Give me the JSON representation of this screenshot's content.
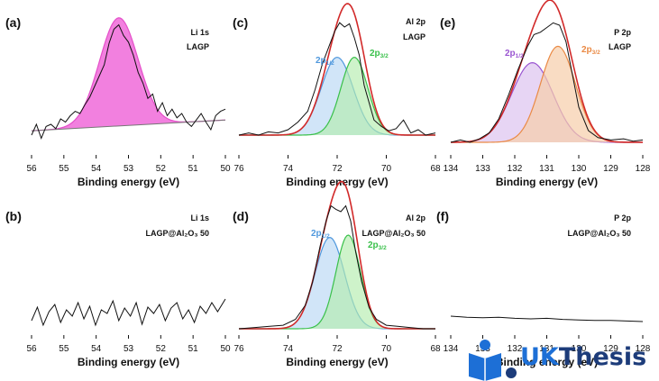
{
  "colors": {
    "li_fill": "#f06ad9",
    "li_line": "#e44fc9",
    "al_fill_1": "#b9d7f5",
    "al_line_1": "#4f98dd",
    "al_fill_2": "#b4ecae",
    "al_line_2": "#39c04a",
    "p_fill_1": "#ddc3f0",
    "p_line_1": "#9a55d1",
    "p_fill_2": "#f6cda9",
    "p_line_2": "#ea8a45",
    "fit": "#d22a2a",
    "baseline": "#777777",
    "wm_blue": "#1d6fd6",
    "wm_dark": "#1d3c7a"
  },
  "watermark": {
    "text_a": "UK",
    "text_b": "Thesis",
    "icon": "book-reader-icon"
  },
  "chart_data": [
    {
      "panel": "(a)",
      "type": "line",
      "annotation": [
        "Li 1s",
        "LAGP"
      ],
      "xlabel": "Binding energy (eV)",
      "xlim": [
        56,
        50
      ],
      "xticks": [
        56,
        55,
        54,
        53,
        52,
        51,
        50
      ],
      "baseline": [
        [
          56,
          0.04
        ],
        [
          50,
          0.14
        ]
      ],
      "components": [
        {
          "label": "",
          "center": 53.3,
          "width": 0.6,
          "amp": 1.0,
          "color": "li"
        }
      ],
      "raw": [
        [
          56.0,
          0.0
        ],
        [
          55.85,
          0.1
        ],
        [
          55.7,
          -0.03
        ],
        [
          55.55,
          0.08
        ],
        [
          55.4,
          0.1
        ],
        [
          55.25,
          0.06
        ],
        [
          55.1,
          0.15
        ],
        [
          54.95,
          0.12
        ],
        [
          54.8,
          0.18
        ],
        [
          54.65,
          0.22
        ],
        [
          54.5,
          0.2
        ],
        [
          54.35,
          0.28
        ],
        [
          54.2,
          0.35
        ],
        [
          54.05,
          0.45
        ],
        [
          53.9,
          0.55
        ],
        [
          53.75,
          0.65
        ],
        [
          53.6,
          0.85
        ],
        [
          53.45,
          0.98
        ],
        [
          53.3,
          1.02
        ],
        [
          53.15,
          0.92
        ],
        [
          53.0,
          0.86
        ],
        [
          52.85,
          0.74
        ],
        [
          52.7,
          0.58
        ],
        [
          52.55,
          0.48
        ],
        [
          52.4,
          0.34
        ],
        [
          52.25,
          0.38
        ],
        [
          52.1,
          0.22
        ],
        [
          51.95,
          0.3
        ],
        [
          51.8,
          0.18
        ],
        [
          51.65,
          0.24
        ],
        [
          51.5,
          0.16
        ],
        [
          51.35,
          0.2
        ],
        [
          51.2,
          0.12
        ],
        [
          51.05,
          0.08
        ],
        [
          50.9,
          0.14
        ],
        [
          50.75,
          0.2
        ],
        [
          50.6,
          0.12
        ],
        [
          50.45,
          0.05
        ],
        [
          50.3,
          0.18
        ],
        [
          50.15,
          0.22
        ],
        [
          50.0,
          0.24
        ]
      ]
    },
    {
      "panel": "(b)",
      "type": "line",
      "annotation": [
        "Li 1s",
        "LAGP@Al₂O₃ 50"
      ],
      "xlabel": "Binding energy (eV)",
      "xlim": [
        56,
        50
      ],
      "xticks": [
        56,
        55,
        54,
        53,
        52,
        51,
        50
      ],
      "raw": [
        [
          56.0,
          0.1
        ],
        [
          55.82,
          0.25
        ],
        [
          55.64,
          0.05
        ],
        [
          55.46,
          0.2
        ],
        [
          55.28,
          0.28
        ],
        [
          55.1,
          0.08
        ],
        [
          54.92,
          0.22
        ],
        [
          54.74,
          0.15
        ],
        [
          54.56,
          0.3
        ],
        [
          54.38,
          0.12
        ],
        [
          54.2,
          0.26
        ],
        [
          54.02,
          0.05
        ],
        [
          53.84,
          0.22
        ],
        [
          53.66,
          0.18
        ],
        [
          53.48,
          0.32
        ],
        [
          53.3,
          0.1
        ],
        [
          53.12,
          0.24
        ],
        [
          52.94,
          0.15
        ],
        [
          52.76,
          0.3
        ],
        [
          52.58,
          0.06
        ],
        [
          52.4,
          0.25
        ],
        [
          52.22,
          0.18
        ],
        [
          52.04,
          0.28
        ],
        [
          51.86,
          0.1
        ],
        [
          51.68,
          0.24
        ],
        [
          51.5,
          0.3
        ],
        [
          51.32,
          0.12
        ],
        [
          51.14,
          0.22
        ],
        [
          50.96,
          0.08
        ],
        [
          50.78,
          0.26
        ],
        [
          50.6,
          0.18
        ],
        [
          50.42,
          0.3
        ],
        [
          50.24,
          0.2
        ],
        [
          50.0,
          0.34
        ]
      ]
    },
    {
      "panel": "(c)",
      "type": "line",
      "annotation": [
        "Al 2p",
        "LAGP"
      ],
      "xlabel": "Binding energy (eV)",
      "xlim": [
        76,
        68
      ],
      "xticks": [
        76,
        74,
        72,
        70,
        68
      ],
      "components": [
        {
          "label": "2p1/2",
          "center": 72.0,
          "width": 0.65,
          "amp": 0.72,
          "color": "al1"
        },
        {
          "label": "2p3/2",
          "center": 71.3,
          "width": 0.55,
          "amp": 0.72,
          "color": "al2"
        }
      ],
      "raw": [
        [
          76.0,
          0.0
        ],
        [
          75.6,
          0.02
        ],
        [
          75.2,
          0.0
        ],
        [
          74.8,
          0.03
        ],
        [
          74.4,
          0.02
        ],
        [
          74.0,
          0.05
        ],
        [
          73.6,
          0.12
        ],
        [
          73.2,
          0.22
        ],
        [
          72.9,
          0.42
        ],
        [
          72.6,
          0.66
        ],
        [
          72.3,
          0.84
        ],
        [
          72.1,
          0.96
        ],
        [
          71.9,
          1.04
        ],
        [
          71.7,
          1.0
        ],
        [
          71.5,
          1.03
        ],
        [
          71.3,
          0.9
        ],
        [
          71.1,
          0.74
        ],
        [
          70.9,
          0.46
        ],
        [
          70.7,
          0.3
        ],
        [
          70.5,
          0.14
        ],
        [
          70.2,
          0.08
        ],
        [
          69.9,
          0.04
        ],
        [
          69.6,
          0.06
        ],
        [
          69.3,
          0.14
        ],
        [
          69.0,
          0.02
        ],
        [
          68.7,
          0.05
        ],
        [
          68.4,
          0.0
        ],
        [
          68.0,
          0.02
        ]
      ]
    },
    {
      "panel": "(d)",
      "type": "line",
      "annotation": [
        "Al 2p",
        "LAGP@Al₂O₃ 50"
      ],
      "xlabel": "Binding energy (eV)",
      "xlim": [
        76,
        68
      ],
      "xticks": [
        76,
        74,
        72,
        70,
        68
      ],
      "components": [
        {
          "label": "2p1/2",
          "center": 72.3,
          "width": 0.6,
          "amp": 0.78,
          "color": "al1"
        },
        {
          "label": "2p3/2",
          "center": 71.55,
          "width": 0.5,
          "amp": 0.8,
          "color": "al2"
        }
      ],
      "raw": [
        [
          76.0,
          0.0
        ],
        [
          75.4,
          0.01
        ],
        [
          74.8,
          0.02
        ],
        [
          74.2,
          0.03
        ],
        [
          73.7,
          0.08
        ],
        [
          73.3,
          0.2
        ],
        [
          73.0,
          0.4
        ],
        [
          72.7,
          0.7
        ],
        [
          72.45,
          0.92
        ],
        [
          72.25,
          1.05
        ],
        [
          72.05,
          1.02
        ],
        [
          71.85,
          1.0
        ],
        [
          71.65,
          1.05
        ],
        [
          71.45,
          0.92
        ],
        [
          71.25,
          0.66
        ],
        [
          71.0,
          0.4
        ],
        [
          70.7,
          0.18
        ],
        [
          70.4,
          0.08
        ],
        [
          70.0,
          0.03
        ],
        [
          69.5,
          0.02
        ],
        [
          69.0,
          0.01
        ],
        [
          68.5,
          0.0
        ],
        [
          68.0,
          0.0
        ]
      ]
    },
    {
      "panel": "(e)",
      "type": "line",
      "annotation": [
        "P 2p",
        "LAGP"
      ],
      "xlabel": "Binding energy (eV)",
      "xlim": [
        134,
        128
      ],
      "xticks": [
        134,
        133,
        132,
        131,
        130,
        129,
        128
      ],
      "components": [
        {
          "label": "2p1/2",
          "center": 131.45,
          "width": 0.65,
          "amp": 0.68,
          "color": "p1"
        },
        {
          "label": "2p3/2",
          "center": 130.65,
          "width": 0.55,
          "amp": 0.82,
          "color": "p2"
        }
      ],
      "raw": [
        [
          134.0,
          0.0
        ],
        [
          133.7,
          0.02
        ],
        [
          133.4,
          0.0
        ],
        [
          133.1,
          0.03
        ],
        [
          132.8,
          0.08
        ],
        [
          132.5,
          0.2
        ],
        [
          132.2,
          0.4
        ],
        [
          131.9,
          0.62
        ],
        [
          131.6,
          0.82
        ],
        [
          131.4,
          0.92
        ],
        [
          131.2,
          0.94
        ],
        [
          131.0,
          0.98
        ],
        [
          130.8,
          1.02
        ],
        [
          130.6,
          1.0
        ],
        [
          130.4,
          0.86
        ],
        [
          130.2,
          0.58
        ],
        [
          130.0,
          0.3
        ],
        [
          129.7,
          0.1
        ],
        [
          129.4,
          0.04
        ],
        [
          129.0,
          0.02
        ],
        [
          128.6,
          0.03
        ],
        [
          128.3,
          0.01
        ],
        [
          128.0,
          0.02
        ]
      ]
    },
    {
      "panel": "(f)",
      "type": "line",
      "annotation": [
        "P 2p",
        "LAGP@Al₂O₃ 50"
      ],
      "xlabel": "Binding energy (eV)",
      "xlim": [
        134,
        128
      ],
      "xticks": [
        134,
        133,
        132,
        131,
        130,
        129,
        128
      ],
      "raw": [
        [
          134.0,
          0.3
        ],
        [
          133.5,
          0.28
        ],
        [
          133.0,
          0.27
        ],
        [
          132.5,
          0.28
        ],
        [
          132.0,
          0.26
        ],
        [
          131.5,
          0.25
        ],
        [
          131.0,
          0.26
        ],
        [
          130.5,
          0.24
        ],
        [
          130.0,
          0.23
        ],
        [
          129.5,
          0.22
        ],
        [
          129.0,
          0.22
        ],
        [
          128.5,
          0.21
        ],
        [
          128.0,
          0.2
        ]
      ]
    }
  ]
}
